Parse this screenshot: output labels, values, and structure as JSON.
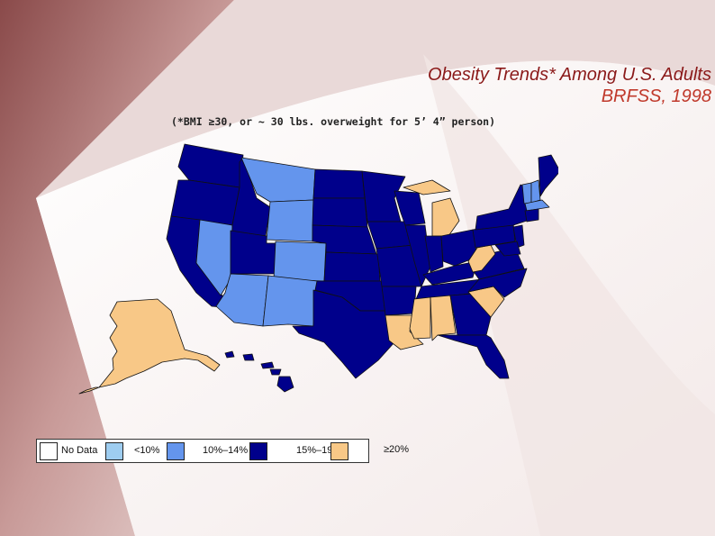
{
  "title": {
    "line1": "Obesity Trends* Among U.S. Adults",
    "line2": "BRFSS, 1998"
  },
  "subtitle": "(*BMI ≥30, or ~ 30 lbs. overweight for 5’ 4” person)",
  "colors": {
    "no_data": "#ffffff",
    "lt10": "#9ecdf0",
    "r10_14": "#6495ed",
    "r15_19": "#00008b",
    "ge20": "#f8c887",
    "title_dark": "#8b1a1a",
    "title_light": "#c0392b"
  },
  "legend": [
    {
      "label": "No Data",
      "color_key": "no_data"
    },
    {
      "label": "<10%",
      "color_key": "lt10"
    },
    {
      "label": "10%–14%",
      "color_key": "r10_14"
    },
    {
      "label": "15%–19%",
      "color_key": "r15_19"
    },
    {
      "label": "≥20%",
      "color_key": "ge20"
    }
  ]
}
